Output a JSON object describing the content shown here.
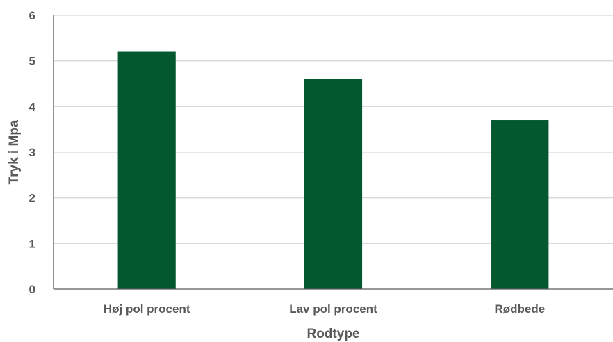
{
  "chart_data": {
    "type": "bar",
    "categories": [
      "Høj pol procent",
      "Lav pol procent",
      "Rødbede"
    ],
    "values": [
      5.2,
      4.6,
      3.7
    ],
    "title": "",
    "xlabel": "Rodtype",
    "ylabel": "Tryk i Mpa",
    "ylim": [
      0,
      6
    ],
    "yticks": [
      0,
      1,
      2,
      3,
      4,
      5,
      6
    ],
    "grid": true,
    "legend": "none",
    "bar_color": "#03582F",
    "grid_color": "#D9D9D9",
    "axis_color": "#595959",
    "text_color": "#595959"
  }
}
